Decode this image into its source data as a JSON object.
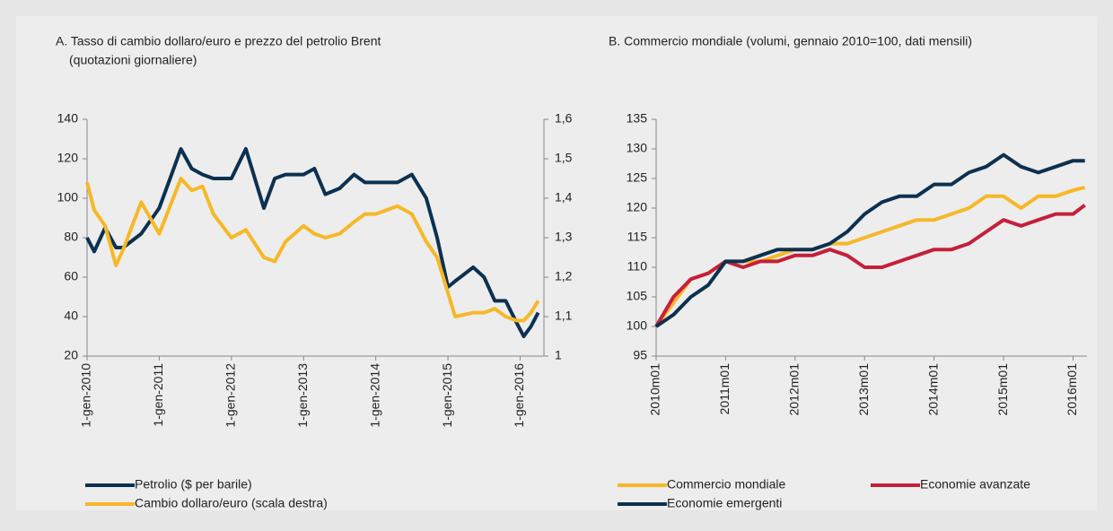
{
  "chart_data": [
    {
      "type": "line",
      "title": "A.  Tasso di cambio dollaro/euro e prezzo del petrolio Brent",
      "subtitle": "(quotazioni giornaliere)",
      "xlim": [
        2010,
        2016.33
      ],
      "xticks": [
        {
          "value": 2010,
          "label": "1-gen-2010"
        },
        {
          "value": 2011,
          "label": "1-gen-2011"
        },
        {
          "value": 2012,
          "label": "1-gen-2012"
        },
        {
          "value": 2013,
          "label": "1-gen-2013"
        },
        {
          "value": 2014,
          "label": "1-gen-2014"
        },
        {
          "value": 2015,
          "label": "1-gen-2015"
        },
        {
          "value": 2016,
          "label": "1-gen-2016"
        }
      ],
      "ylim": [
        20,
        140
      ],
      "yticks": [
        20,
        40,
        60,
        80,
        100,
        120,
        140
      ],
      "y2lim": [
        1,
        1.6
      ],
      "y2ticks": [
        1,
        {
          "value": 1.1,
          "label": "1,1"
        },
        {
          "value": 1.2,
          "label": "1,2"
        },
        {
          "value": 1.3,
          "label": "1,3"
        },
        {
          "value": 1.4,
          "label": "1,4"
        },
        {
          "value": 1.5,
          "label": "1,5"
        },
        {
          "value": 1.6,
          "label": "1,6"
        }
      ],
      "x": [
        2010.0,
        2010.1,
        2010.25,
        2010.4,
        2010.5,
        2010.75,
        2011.0,
        2011.15,
        2011.3,
        2011.45,
        2011.6,
        2011.75,
        2012.0,
        2012.2,
        2012.45,
        2012.6,
        2012.75,
        2013.0,
        2013.15,
        2013.3,
        2013.5,
        2013.7,
        2013.85,
        2014.0,
        2014.3,
        2014.5,
        2014.7,
        2014.85,
        2015.0,
        2015.1,
        2015.35,
        2015.5,
        2015.65,
        2015.8,
        2015.95,
        2016.05,
        2016.15,
        2016.25
      ],
      "series": [
        {
          "name": "Petrolio ($ per barile)",
          "color": "#0c3150",
          "values": [
            80,
            73,
            85,
            75,
            75,
            82,
            95,
            110,
            125,
            115,
            112,
            110,
            110,
            125,
            95,
            110,
            112,
            112,
            115,
            102,
            105,
            112,
            108,
            108,
            108,
            112,
            100,
            80,
            55,
            58,
            65,
            60,
            48,
            48,
            37,
            30,
            35,
            42
          ]
        },
        {
          "name": "Cambio dollaro/euro (scala destra)",
          "color": "#f6b828",
          "axis": "y2",
          "values": [
            1.44,
            1.37,
            1.33,
            1.23,
            1.27,
            1.39,
            1.31,
            1.38,
            1.45,
            1.42,
            1.43,
            1.36,
            1.3,
            1.32,
            1.25,
            1.24,
            1.29,
            1.33,
            1.31,
            1.3,
            1.31,
            1.34,
            1.36,
            1.36,
            1.38,
            1.36,
            1.29,
            1.25,
            1.16,
            1.1,
            1.11,
            1.11,
            1.12,
            1.1,
            1.09,
            1.09,
            1.11,
            1.14
          ]
        }
      ]
    },
    {
      "type": "line",
      "title": "B.  Commercio mondiale (volumi, gennaio 2010=100, dati mensili)",
      "xlim": [
        2010,
        2016.2
      ],
      "xticks": [
        {
          "value": 2010,
          "label": "2010m01"
        },
        {
          "value": 2011,
          "label": "2011m01"
        },
        {
          "value": 2012,
          "label": "2012m01"
        },
        {
          "value": 2013,
          "label": "2013m01"
        },
        {
          "value": 2014,
          "label": "2014m01"
        },
        {
          "value": 2015,
          "label": "2015m01"
        },
        {
          "value": 2016,
          "label": "2016m01"
        }
      ],
      "ylim": [
        95,
        135
      ],
      "yticks": [
        95,
        100,
        105,
        110,
        115,
        120,
        125,
        130,
        135
      ],
      "x": [
        2010.0,
        2010.25,
        2010.5,
        2010.75,
        2011.0,
        2011.25,
        2011.5,
        2011.75,
        2012.0,
        2012.25,
        2012.5,
        2012.75,
        2013.0,
        2013.25,
        2013.5,
        2013.75,
        2014.0,
        2014.25,
        2014.5,
        2014.75,
        2015.0,
        2015.25,
        2015.5,
        2015.75,
        2016.0,
        2016.17
      ],
      "series": [
        {
          "name": "Commercio mondiale",
          "color": "#f6b828",
          "values": [
            100,
            104,
            108,
            109,
            111,
            111,
            111,
            112,
            113,
            113,
            114,
            114,
            115,
            116,
            117,
            118,
            118,
            119,
            120,
            122,
            122,
            120,
            122,
            122,
            123,
            123.5
          ]
        },
        {
          "name": "Economie avanzate",
          "color": "#c4203a",
          "values": [
            100,
            105,
            108,
            109,
            111,
            110,
            111,
            111,
            112,
            112,
            113,
            112,
            110,
            110,
            111,
            112,
            113,
            113,
            114,
            116,
            118,
            117,
            118,
            119,
            119,
            120.5
          ]
        },
        {
          "name": "Economie emergenti",
          "color": "#0c3150",
          "values": [
            100,
            102,
            105,
            107,
            111,
            111,
            112,
            113,
            113,
            113,
            114,
            116,
            119,
            121,
            122,
            122,
            124,
            124,
            126,
            127,
            129,
            127,
            126,
            127,
            128,
            128
          ]
        }
      ]
    }
  ]
}
